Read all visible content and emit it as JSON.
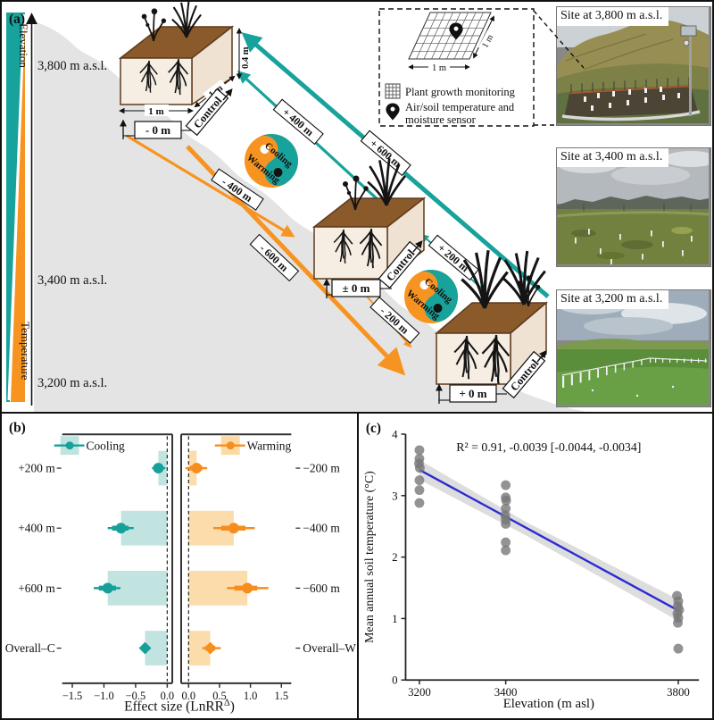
{
  "panel_a": {
    "label": "(a)",
    "gradient": {
      "elevation": "Elevation",
      "temperature": "Temperature",
      "teal": "#18A29C",
      "orange": "#F79421"
    },
    "elevations": [
      "3,800 m a.s.l.",
      "3,400 m a.s.l.",
      "3,200 m a.s.l."
    ],
    "offsets": [
      "- 0 m",
      "± 0 m",
      "+ 0 m"
    ],
    "control": "Control",
    "dims": {
      "width": "1 m",
      "depth": "1 m",
      "height": "0.4 m"
    },
    "arrows": {
      "cooling": [
        "+ 200 m",
        "+ 400 m",
        "+ 600 m"
      ],
      "warming": [
        "- 200 m",
        "- 400 m",
        "- 600 m"
      ]
    },
    "cycle": {
      "cooling": "Cooling",
      "warming": "Warming"
    },
    "legend": {
      "plant": "Plant growth monitoring",
      "sensor_line1": "Air/soil temperature and",
      "sensor_line2": "moisture sensor",
      "quadrat_width": "1 m",
      "quadrat_depth": "1 m"
    },
    "photos": [
      {
        "caption": "Site at 3,800 m a.s.l."
      },
      {
        "caption": "Site at 3,400 m a.s.l."
      },
      {
        "caption": "Site at 3,200 m a.s.l."
      }
    ]
  },
  "panel_b": {
    "label": "(b)",
    "xlabel_main": "Effect size (LnRR",
    "xlabel_sup": "Δ",
    "xlabel_close": ")"
  },
  "panel_c": {
    "label": "(c)"
  },
  "chart_data": [
    {
      "id": "cooling_effect",
      "type": "bar",
      "orientation": "horizontal",
      "legend": "Cooling",
      "categories": [
        "+200 m",
        "+400 m",
        "+600 m",
        "Overall–C"
      ],
      "values": [
        -0.14,
        -0.73,
        -0.94,
        -0.35
      ],
      "ci_outer": [
        [
          -0.24,
          -0.03
        ],
        [
          -0.94,
          -0.53
        ],
        [
          -1.16,
          -0.74
        ],
        [
          -0.41,
          -0.29
        ]
      ],
      "ci_inner": [
        [
          -0.21,
          -0.07
        ],
        [
          -0.87,
          -0.61
        ],
        [
          -1.08,
          -0.81
        ],
        [
          -0.39,
          -0.31
        ]
      ],
      "marker_shapes": [
        "circle",
        "circle",
        "circle",
        "diamond"
      ],
      "xlim": [
        -1.66,
        0.08
      ],
      "xticks": [
        -1.5,
        -1.0,
        -0.5,
        0.0
      ],
      "xtick_labels": [
        "−1.5",
        "−1.0",
        "−0.5",
        "0.0"
      ],
      "zero_line": true,
      "label_side": "left",
      "point_color": "#17A09A",
      "bar_fill": "#BFE3DE"
    },
    {
      "id": "warming_effect",
      "type": "bar",
      "orientation": "horizontal",
      "legend": "Warming",
      "categories": [
        "−200 m",
        "−400 m",
        "−600 m",
        "Overall–W"
      ],
      "values": [
        0.13,
        0.73,
        0.95,
        0.35
      ],
      "ci_outer": [
        [
          -0.05,
          0.3
        ],
        [
          0.4,
          1.07
        ],
        [
          0.62,
          1.29
        ],
        [
          0.22,
          0.52
        ]
      ],
      "ci_inner": [
        [
          0.02,
          0.22
        ],
        [
          0.53,
          0.92
        ],
        [
          0.74,
          1.11
        ],
        [
          0.27,
          0.43
        ]
      ],
      "marker_shapes": [
        "circle",
        "circle",
        "circle",
        "diamond"
      ],
      "xlim": [
        -0.12,
        1.66
      ],
      "xticks": [
        0.0,
        0.5,
        1.0,
        1.5
      ],
      "xtick_labels": [
        "0.0",
        "0.5",
        "1.0",
        "1.5"
      ],
      "zero_line": true,
      "label_side": "right",
      "point_color": "#F68D1E",
      "bar_fill": "#FCDAA6"
    },
    {
      "id": "soil_temperature_vs_elevation",
      "type": "scatter",
      "annotation": "R² = 0.91,  -0.0039 [-0.0044, -0.0034]",
      "xlabel": "Elevation (m asl)",
      "ylabel": "Mean annual soil temperature (°C)",
      "xlim": [
        3168,
        3852
      ],
      "ylim": [
        0,
        4
      ],
      "xticks": [
        3200,
        3400,
        3800
      ],
      "yticks": [
        0,
        1,
        2,
        3,
        4
      ],
      "points": [
        [
          3200,
          3.74
        ],
        [
          3200,
          3.6
        ],
        [
          3199,
          3.52
        ],
        [
          3201,
          3.45
        ],
        [
          3200,
          3.25
        ],
        [
          3200,
          3.09
        ],
        [
          3200,
          2.88
        ],
        [
          3400,
          3.17
        ],
        [
          3400,
          2.97
        ],
        [
          3401,
          2.92
        ],
        [
          3400,
          2.79
        ],
        [
          3399,
          2.68
        ],
        [
          3400,
          2.61
        ],
        [
          3400,
          2.54
        ],
        [
          3400,
          2.24
        ],
        [
          3400,
          2.11
        ],
        [
          3797,
          1.37
        ],
        [
          3800,
          1.28
        ],
        [
          3799,
          1.2
        ],
        [
          3802,
          1.14
        ],
        [
          3798,
          1.08
        ],
        [
          3800,
          1.01
        ],
        [
          3799,
          0.93
        ],
        [
          3800,
          0.51
        ]
      ],
      "regression": {
        "x": [
          3200,
          3800
        ],
        "y": [
          3.42,
          1.13
        ],
        "color": "#2B2AD4"
      },
      "ci_band": {
        "x": [
          3200,
          3450,
          3800
        ],
        "upper": [
          3.58,
          2.56,
          1.31
        ],
        "lower": [
          3.26,
          2.34,
          0.96
        ],
        "color": "#D9D9D9"
      },
      "point_color": "#787878"
    }
  ]
}
